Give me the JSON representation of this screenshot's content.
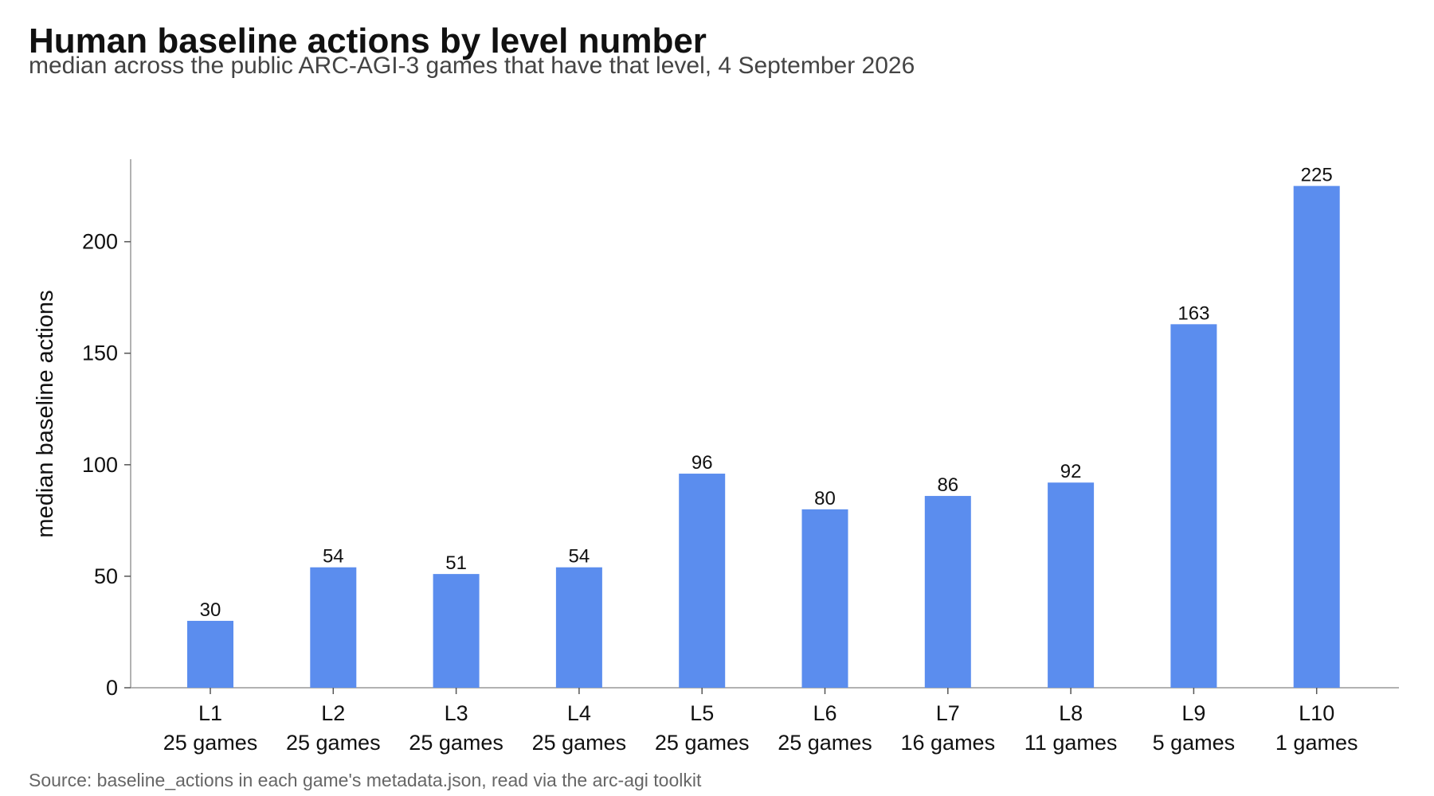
{
  "chart_data": {
    "type": "bar",
    "title": "Human baseline actions by level number",
    "subtitle": "median across the public ARC-AGI-3 games that have that level, 4 September 2026",
    "source": "Source: baseline_actions in each game's metadata.json, read via the arc-agi toolkit",
    "xlabel": "",
    "ylabel": "median baseline actions",
    "categories": [
      "L1",
      "L2",
      "L3",
      "L4",
      "L5",
      "L6",
      "L7",
      "L8",
      "L9",
      "L10"
    ],
    "category_sublabels": [
      "25 games",
      "25 games",
      "25 games",
      "25 games",
      "25 games",
      "25 games",
      "16 games",
      "11 games",
      "5 games",
      "1 games"
    ],
    "values": [
      30,
      54,
      51,
      54,
      96,
      80,
      86,
      92,
      163,
      225
    ],
    "ylim": [
      0,
      237
    ],
    "yticks": [
      0,
      50,
      100,
      150,
      200
    ],
    "bar_color": "#5b8dee",
    "grid": false,
    "data_labels": true
  }
}
